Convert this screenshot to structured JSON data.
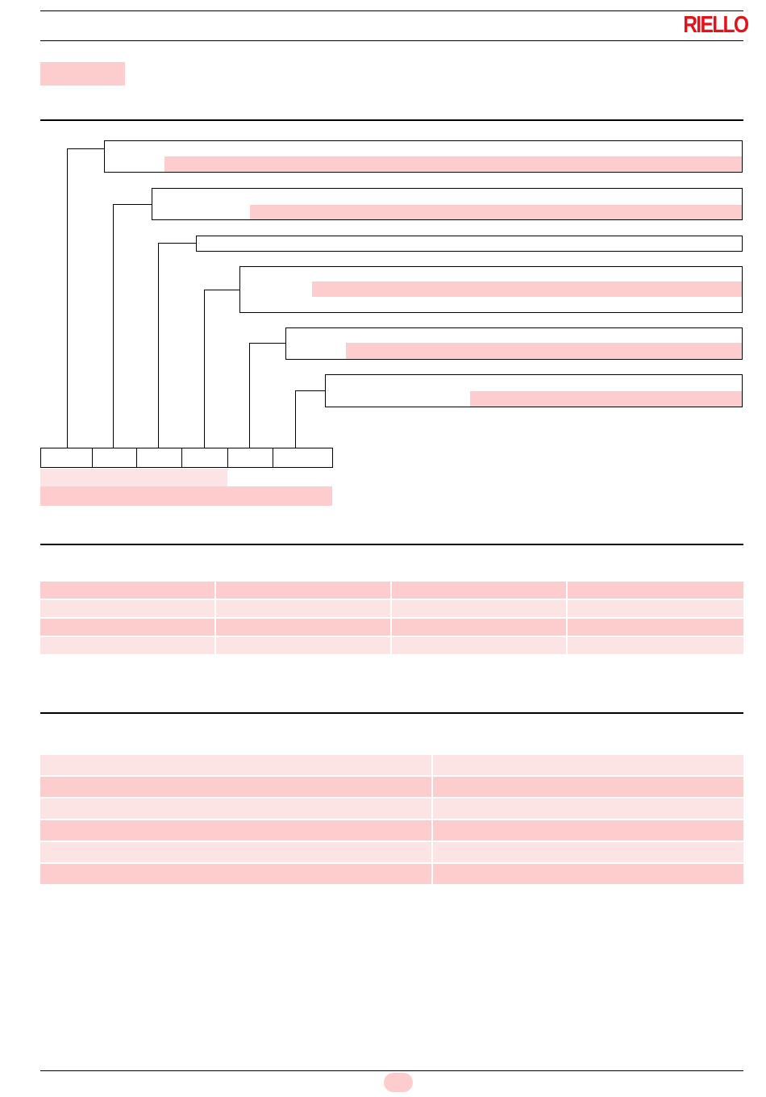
{
  "header": {
    "brand": "RIELLO",
    "brand_color": "#e0141c",
    "section_label": ""
  },
  "designation": {
    "boxes": [
      {
        "text": ""
      },
      {
        "text": ""
      },
      {
        "text": ""
      },
      {
        "text": ""
      },
      {
        "text": ""
      },
      {
        "text": ""
      }
    ],
    "code_cells": [
      "",
      "",
      "",
      "",
      "",
      ""
    ],
    "code_caption_1": "",
    "code_caption_2": ""
  },
  "table1": {
    "rows": [
      [
        "",
        "",
        "",
        ""
      ],
      [
        "",
        "",
        "",
        ""
      ],
      [
        "",
        "",
        "",
        ""
      ],
      [
        "",
        "",
        "",
        ""
      ]
    ]
  },
  "table2": {
    "rows": [
      [
        "",
        ""
      ],
      [
        "",
        ""
      ],
      [
        "",
        ""
      ],
      [
        "",
        ""
      ],
      [
        "",
        ""
      ],
      [
        "",
        ""
      ]
    ]
  },
  "footer": {
    "page_number": ""
  },
  "colors": {
    "highlight_strong": "#fdcccc",
    "highlight_light": "#fde4e4",
    "rule": "#000000"
  }
}
